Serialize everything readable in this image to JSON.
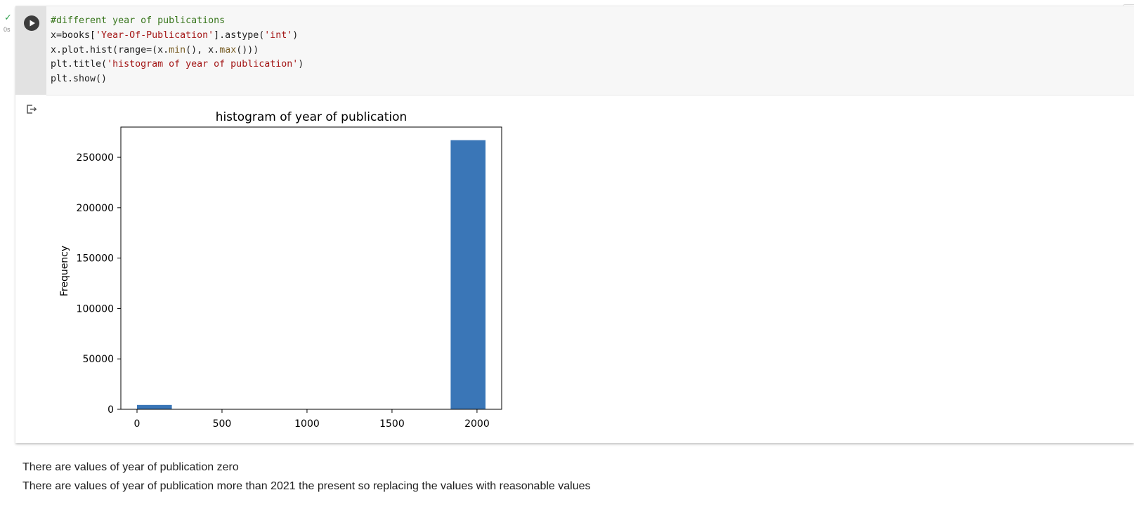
{
  "cell_status": {
    "time": "0s",
    "state": "success"
  },
  "code_lines": [
    [
      {
        "t": "#different year of publications",
        "c": "comment"
      }
    ],
    [
      {
        "t": "x=books[",
        "c": ""
      },
      {
        "t": "'Year-Of-Publication'",
        "c": "string"
      },
      {
        "t": "].astype(",
        "c": ""
      },
      {
        "t": "'int'",
        "c": "string"
      },
      {
        "t": ")",
        "c": ""
      }
    ],
    [
      {
        "t": "x.plot.hist(range=(x.",
        "c": ""
      },
      {
        "t": "min",
        "c": "builtin"
      },
      {
        "t": "(), x.",
        "c": ""
      },
      {
        "t": "max",
        "c": "builtin"
      },
      {
        "t": "()))",
        "c": ""
      }
    ],
    [
      {
        "t": "plt.title(",
        "c": ""
      },
      {
        "t": "'histogram of year of publication'",
        "c": "string"
      },
      {
        "t": ")",
        "c": ""
      }
    ],
    [
      {
        "t": "plt.show()",
        "c": ""
      }
    ]
  ],
  "chart_data": {
    "type": "bar",
    "title": "histogram of year of publication",
    "xlabel": "",
    "ylabel": "Frequency",
    "xlim": [
      -95,
      2145
    ],
    "ylim": [
      0,
      280000
    ],
    "xticks": [
      0,
      500,
      1000,
      1500,
      2000
    ],
    "yticks": [
      0,
      50000,
      100000,
      150000,
      200000,
      250000
    ],
    "bins": [
      {
        "start": 0,
        "end": 205,
        "count": 4300
      },
      {
        "start": 205,
        "end": 410,
        "count": 0
      },
      {
        "start": 410,
        "end": 615,
        "count": 0
      },
      {
        "start": 615,
        "end": 820,
        "count": 0
      },
      {
        "start": 820,
        "end": 1025,
        "count": 0
      },
      {
        "start": 1025,
        "end": 1230,
        "count": 0
      },
      {
        "start": 1230,
        "end": 1435,
        "count": 0
      },
      {
        "start": 1435,
        "end": 1640,
        "count": 0
      },
      {
        "start": 1640,
        "end": 1845,
        "count": 0
      },
      {
        "start": 1845,
        "end": 2050,
        "count": 267000
      }
    ],
    "bar_color": "#3a76b7"
  },
  "text_cell": {
    "lines": [
      "There are values of year of publication zero",
      "There are values of year of publication more than 2021 the present so replacing the values with reasonable values"
    ]
  },
  "colors": {
    "check": "#2e9f4c",
    "cell_bg": "#f7f7f7",
    "gutter": "#e2e2e2"
  },
  "icons": {
    "run": "play-icon",
    "status": "check-icon",
    "output": "output-icon"
  }
}
